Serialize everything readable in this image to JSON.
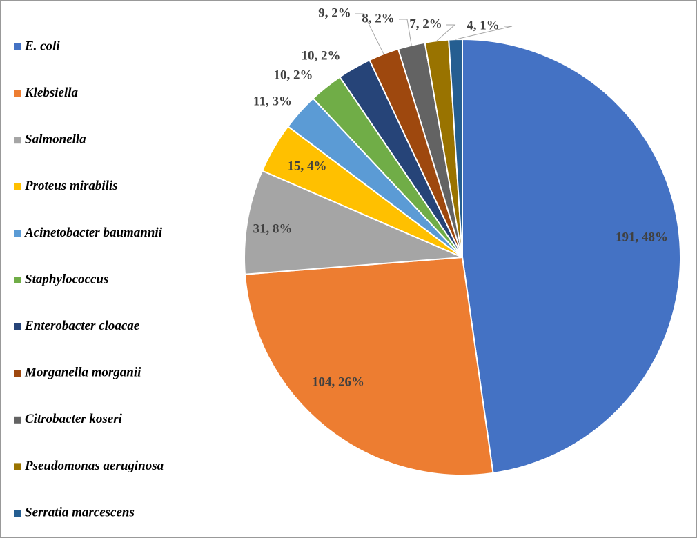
{
  "chart_data": {
    "type": "pie",
    "categories": [
      "E. coli",
      "Klebsiella",
      "Salmonella",
      "Proteus mirabilis",
      "Acinetobacter baumannii",
      "Staphylococcus",
      "Enterobacter cloacae",
      "Morganella morganii",
      "Citrobacter koseri",
      "Pseudomonas aeruginosa",
      "Serratia marcescens"
    ],
    "values": [
      191,
      104,
      31,
      15,
      11,
      10,
      10,
      9,
      8,
      7,
      4
    ],
    "value_labels": [
      "191, 48%",
      "104, 26%",
      "31, 8%",
      "15, 4%",
      "11, 3%",
      "10, 2%",
      "10, 2%",
      "9, 2%",
      "8, 2%",
      "7, 2%",
      "4, 1%"
    ],
    "colors": [
      "#4472c4",
      "#ed7d31",
      "#a5a5a5",
      "#ffc000",
      "#5b9bd5",
      "#70ad47",
      "#264478",
      "#9e480e",
      "#636363",
      "#997300",
      "#255e91"
    ],
    "legend": "left"
  }
}
